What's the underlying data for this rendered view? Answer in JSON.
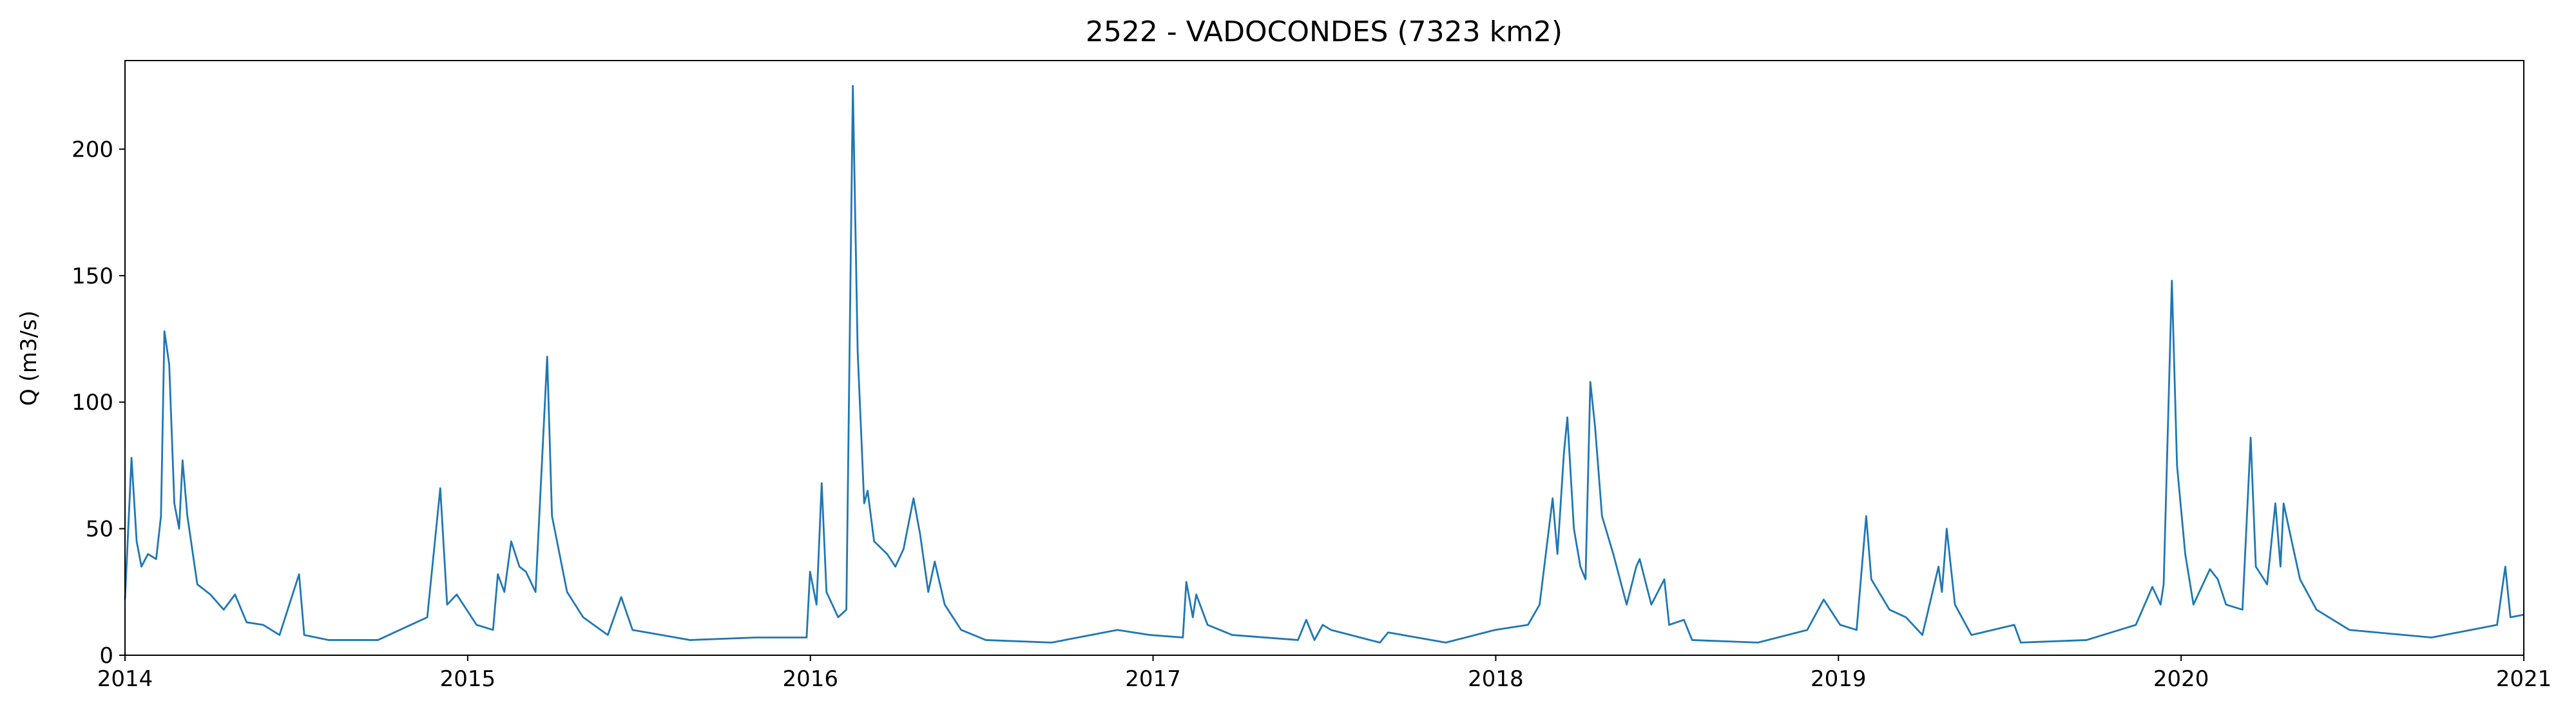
{
  "chart_data": {
    "type": "line",
    "title": "2522 - VADOCONDES (7323 km2)",
    "ylabel": "Q (m3/s)",
    "xlim": [
      2014,
      2021
    ],
    "xticks": [
      2014,
      2015,
      2016,
      2017,
      2018,
      2019,
      2020,
      2021
    ],
    "ylim": [
      0,
      235
    ],
    "yticks": [
      0,
      50,
      100,
      150,
      200
    ],
    "grid": false,
    "series": [
      {
        "name": "Q",
        "color": "#1f77b4",
        "x": [
          2014,
          2014.019,
          2014.034,
          2014.048,
          2014.067,
          2014.091,
          2014.105,
          2014.115,
          2014.129,
          2014.144,
          2014.158,
          2014.168,
          2014.182,
          2014.211,
          2014.249,
          2014.288,
          2014.321,
          2014.355,
          2014.403,
          2014.451,
          2014.508,
          2014.523,
          2014.594,
          2014.738,
          2014.882,
          2014.92,
          2014.94,
          2014.968,
          2015.026,
          2015.074,
          2015.088,
          2015.107,
          2015.127,
          2015.151,
          2015.17,
          2015.198,
          2015.232,
          2015.246,
          2015.29,
          2015.337,
          2015.409,
          2015.448,
          2015.481,
          2015.649,
          2015.841,
          2015.989,
          2015.999,
          2016.018,
          2016.033,
          2016.047,
          2016.081,
          2016.105,
          2016.124,
          2016.138,
          2016.157,
          2016.167,
          2016.186,
          2016.224,
          2016.248,
          2016.272,
          2016.301,
          2016.32,
          2016.344,
          2016.363,
          2016.392,
          2016.44,
          2016.512,
          2016.704,
          2016.896,
          2016.991,
          2017.087,
          2017.097,
          2017.116,
          2017.126,
          2017.159,
          2017.231,
          2017.423,
          2017.447,
          2017.471,
          2017.495,
          2017.519,
          2017.662,
          2017.686,
          2017.854,
          2017.998,
          2018.094,
          2018.128,
          2018.166,
          2018.18,
          2018.199,
          2018.209,
          2018.228,
          2018.247,
          2018.262,
          2018.276,
          2018.29,
          2018.31,
          2018.343,
          2018.382,
          2018.41,
          2018.42,
          2018.454,
          2018.492,
          2018.506,
          2018.549,
          2018.573,
          2018.765,
          2018.909,
          2018.957,
          2019.005,
          2019.053,
          2019.081,
          2019.096,
          2019.149,
          2019.197,
          2019.245,
          2019.292,
          2019.302,
          2019.316,
          2019.34,
          2019.388,
          2019.513,
          2019.532,
          2019.724,
          2019.868,
          2019.916,
          2019.94,
          2019.949,
          2019.973,
          2019.988,
          2020.012,
          2020.036,
          2020.084,
          2020.107,
          2020.131,
          2020.179,
          2020.203,
          2020.218,
          2020.251,
          2020.275,
          2020.29,
          2020.299,
          2020.318,
          2020.347,
          2020.395,
          2020.491,
          2020.731,
          2020.922,
          2020.946,
          2020.961,
          2021
        ],
        "values": [
          22,
          78,
          45,
          35,
          40,
          38,
          55,
          128,
          115,
          60,
          50,
          77,
          55,
          28,
          24,
          18,
          24,
          13,
          12,
          8,
          32,
          8,
          6,
          6,
          15,
          66,
          20,
          24,
          12,
          10,
          32,
          25,
          45,
          35,
          33,
          25,
          118,
          55,
          25,
          15,
          8,
          23,
          10,
          6,
          7,
          7,
          33,
          20,
          68,
          25,
          15,
          18,
          225,
          120,
          60,
          65,
          45,
          40,
          35,
          42,
          62,
          48,
          25,
          37,
          20,
          10,
          6,
          5,
          10,
          8,
          7,
          29,
          15,
          24,
          12,
          8,
          6,
          14,
          6,
          12,
          10,
          5,
          9,
          5,
          10,
          12,
          20,
          62,
          40,
          80,
          94,
          50,
          35,
          30,
          108,
          90,
          55,
          40,
          20,
          35,
          38,
          20,
          30,
          12,
          14,
          6,
          5,
          10,
          22,
          12,
          10,
          55,
          30,
          18,
          15,
          8,
          35,
          25,
          50,
          20,
          8,
          12,
          5,
          6,
          12,
          27,
          20,
          28,
          148,
          75,
          40,
          20,
          34,
          30,
          20,
          18,
          86,
          35,
          28,
          60,
          35,
          60,
          48,
          30,
          18,
          10,
          7,
          12,
          35,
          15,
          16
        ]
      }
    ]
  }
}
